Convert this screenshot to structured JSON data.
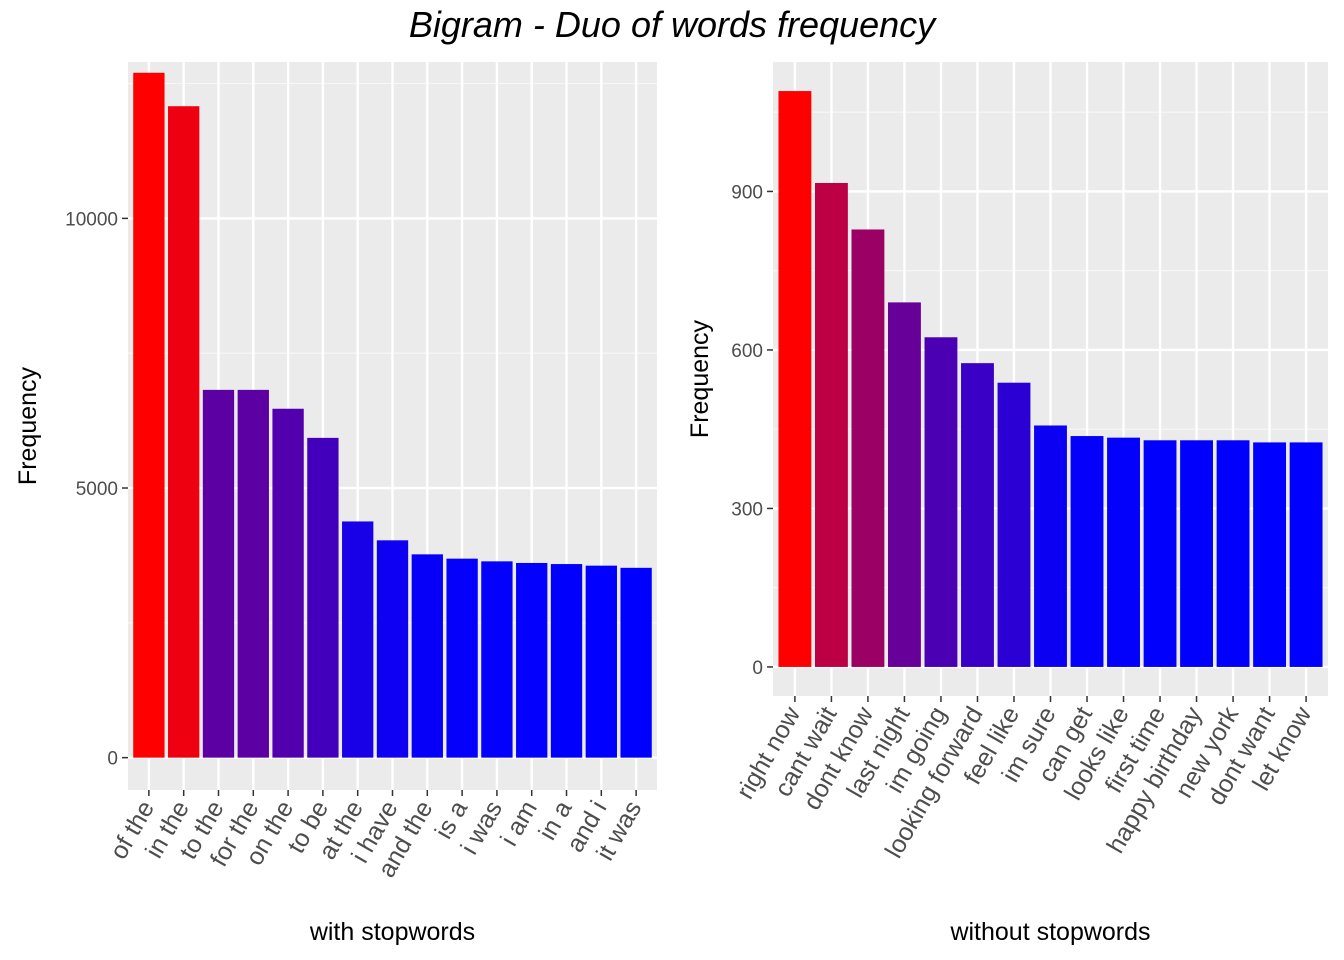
{
  "title": "Bigram - Duo of words frequency",
  "chart_data": [
    {
      "type": "bar",
      "panel": "left",
      "xlabel": "with stopwords",
      "ylabel": "Frequency",
      "ylim": [
        -600,
        12900
      ],
      "yticks": [
        0,
        5000,
        10000
      ],
      "grid": true,
      "color_low": "#0000ff",
      "color_high": "#ff0000",
      "categories": [
        "of the",
        "in the",
        "to the",
        "for the",
        "on the",
        "to be",
        "at the",
        "i have",
        "and the",
        "is a",
        "i was",
        "i am",
        "in a",
        "and i",
        "it was"
      ],
      "values": [
        12700,
        12080,
        6820,
        6820,
        6470,
        5930,
        4380,
        4030,
        3770,
        3690,
        3640,
        3610,
        3590,
        3560,
        3520
      ]
    },
    {
      "type": "bar",
      "panel": "right",
      "xlabel": "without stopwords",
      "ylabel": "Frequency",
      "ylim": [
        -55,
        1145
      ],
      "yticks": [
        0,
        300,
        600,
        900
      ],
      "grid": true,
      "color_low": "#0000ff",
      "color_high": "#ff0000",
      "categories": [
        "right now",
        "cant wait",
        "dont know",
        "last night",
        "im going",
        "looking forward",
        "feel like",
        "im sure",
        "can get",
        "looks like",
        "first time",
        "happy birthday",
        "new york",
        "dont want",
        "let know"
      ],
      "values": [
        1090,
        916,
        828,
        690,
        624,
        575,
        538,
        457,
        437,
        434,
        429,
        429,
        429,
        425,
        425
      ]
    }
  ]
}
